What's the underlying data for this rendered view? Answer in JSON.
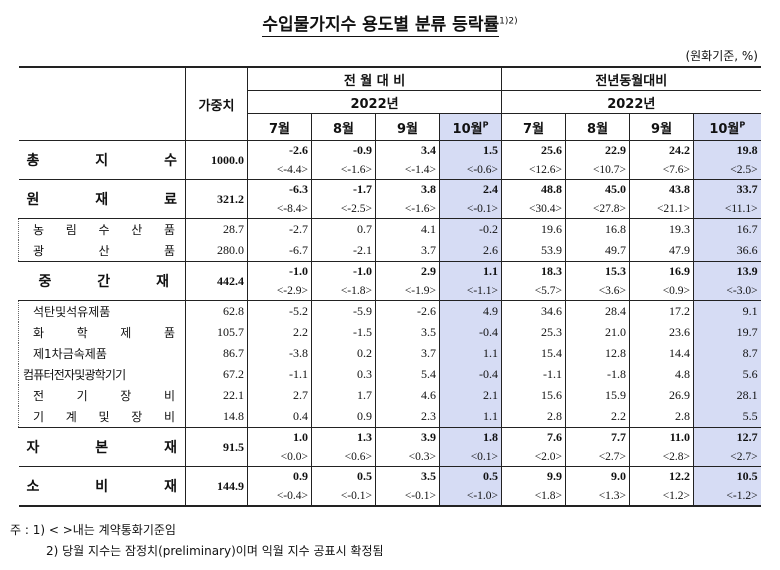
{
  "title": "수입물가지수 용도별 분류 등락률",
  "title_sup": "1)2)",
  "unit": "(원화기준, %)",
  "headers": {
    "weight": "가중치",
    "mom": "전 월 대 비",
    "yoy": "전년동월대비",
    "year": "2022년",
    "months": [
      "7월",
      "8월",
      "9월",
      "10월"
    ],
    "prelim_mark": "P"
  },
  "rows_main": [
    {
      "label": "총 지 수",
      "weight": "1000.0",
      "vals": [
        "-2.6",
        "-0.9",
        "3.4",
        "1.5",
        "25.6",
        "22.9",
        "24.2",
        "19.8"
      ],
      "contract": [
        "<-4.4>",
        "<-1.6>",
        "<-1.4>",
        "<-0.6>",
        "<12.6>",
        "<10.7>",
        "<7.6>",
        "<2.5>"
      ]
    },
    {
      "label": "원 재 료",
      "weight": "321.2",
      "vals": [
        "-6.3",
        "-1.7",
        "3.8",
        "2.4",
        "48.8",
        "45.0",
        "43.8",
        "33.7"
      ],
      "contract": [
        "<-8.4>",
        "<-2.5>",
        "<-1.6>",
        "<-0.1>",
        "<30.4>",
        "<27.8>",
        "<21.1>",
        "<11.1>"
      ]
    },
    {
      "label": "중 간 재",
      "weight": "442.4",
      "vals": [
        "-1.0",
        "-1.0",
        "2.9",
        "1.1",
        "18.3",
        "15.3",
        "16.9",
        "13.9"
      ],
      "contract": [
        "<-2.9>",
        "<-1.8>",
        "<-1.9>",
        "<-1.1>",
        "<5.7>",
        "<3.6>",
        "<0.9>",
        "<-3.0>"
      ]
    },
    {
      "label": "자 본 재",
      "weight": "91.5",
      "vals": [
        "1.0",
        "1.3",
        "3.9",
        "1.8",
        "7.6",
        "7.7",
        "11.0",
        "12.7"
      ],
      "contract": [
        "<0.0>",
        "<0.6>",
        "<0.3>",
        "<0.1>",
        "<2.0>",
        "<2.7>",
        "<2.8>",
        "<2.7>"
      ]
    },
    {
      "label": "소 비 재",
      "weight": "144.9",
      "vals": [
        "0.9",
        "0.5",
        "3.5",
        "0.5",
        "9.9",
        "9.0",
        "12.2",
        "10.5"
      ],
      "contract": [
        "<-0.4>",
        "<-0.1>",
        "<-0.1>",
        "<-1.0>",
        "<1.8>",
        "<1.3>",
        "<1.2>",
        "<-1.2>"
      ]
    }
  ],
  "rows_raw": [
    {
      "label": "농 림 수 산 품",
      "weight": "28.7",
      "vals": [
        "-2.7",
        "0.7",
        "4.1",
        "-0.2",
        "19.6",
        "16.8",
        "19.3",
        "16.7"
      ]
    },
    {
      "label": "광 산 품",
      "weight": "280.0",
      "vals": [
        "-6.7",
        "-2.1",
        "3.7",
        "2.6",
        "53.9",
        "49.7",
        "47.9",
        "36.6"
      ]
    }
  ],
  "rows_mid": [
    {
      "label": "석탄및석유제품",
      "weight": "62.8",
      "vals": [
        "-5.2",
        "-5.9",
        "-2.6",
        "4.9",
        "34.6",
        "28.4",
        "17.2",
        "9.1"
      ]
    },
    {
      "label": "화 학 제 품",
      "weight": "105.7",
      "vals": [
        "2.2",
        "-1.5",
        "3.5",
        "-0.4",
        "25.3",
        "21.0",
        "23.6",
        "19.7"
      ]
    },
    {
      "label": "제1차금속제품",
      "weight": "86.7",
      "vals": [
        "-3.8",
        "0.2",
        "3.7",
        "1.1",
        "15.4",
        "12.8",
        "14.4",
        "8.7"
      ]
    },
    {
      "label": "컴퓨터전자및광학기기",
      "weight": "67.2",
      "vals": [
        "-1.1",
        "0.3",
        "5.4",
        "-0.4",
        "-1.1",
        "-1.8",
        "4.8",
        "5.6"
      ]
    },
    {
      "label": "전 기 장 비",
      "weight": "22.1",
      "vals": [
        "2.7",
        "1.7",
        "4.6",
        "2.1",
        "15.6",
        "15.9",
        "26.9",
        "28.1"
      ]
    },
    {
      "label": "기 계 및 장 비",
      "weight": "14.8",
      "vals": [
        "0.4",
        "0.9",
        "2.3",
        "1.1",
        "2.8",
        "2.2",
        "2.8",
        "5.5"
      ]
    }
  ],
  "notes": [
    "주 : 1) < >내는 계약통화기준임",
    "2) 당월 지수는 잠정치(preliminary)이며 익월 지수 공표시 확정됨"
  ]
}
